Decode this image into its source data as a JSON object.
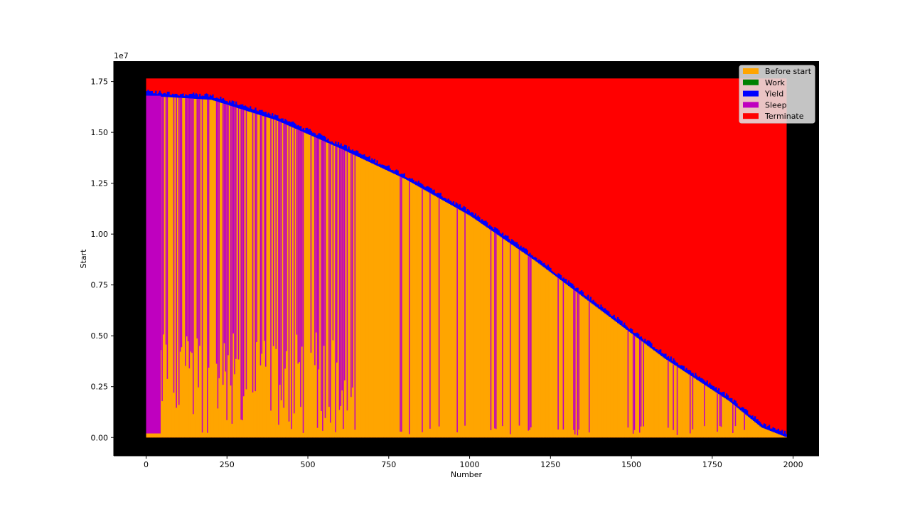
{
  "chart_data": {
    "type": "bar",
    "subtype": "stacked-horizontal-bars-per-thread-timeline",
    "xlabel": "Number",
    "ylabel": "Start",
    "y_offset_label": "1e7",
    "xlim": [
      -100,
      2080
    ],
    "ylim": [
      -0.09,
      1.85
    ],
    "y_scale_note": "values shown in units of 1e7",
    "x_ticks": [
      0,
      250,
      500,
      750,
      1000,
      1250,
      1500,
      1750,
      2000
    ],
    "x_tick_labels": [
      "0",
      "250",
      "500",
      "750",
      "1000",
      "1250",
      "1500",
      "1750",
      "2000"
    ],
    "y_ticks": [
      0.0,
      0.25,
      0.5,
      0.75,
      1.0,
      1.25,
      1.5,
      1.75
    ],
    "y_tick_labels": [
      "0.00",
      "0.25",
      "0.50",
      "0.75",
      "1.00",
      "1.25",
      "1.50",
      "1.75"
    ],
    "background": "#000000",
    "legend_position": "upper right",
    "series": [
      {
        "name": "Before start",
        "color": "#ffa500"
      },
      {
        "name": "Work",
        "color": "#008000"
      },
      {
        "name": "Yield",
        "color": "#0000ff"
      },
      {
        "name": "Sleep",
        "color": "#bf00bf"
      },
      {
        "name": "Terminate",
        "color": "#ff0000"
      }
    ],
    "n_bars": 1980,
    "terminate_top": 1.765,
    "sleep_top": 1.68,
    "boundary_profile": {
      "x": [
        0,
        200,
        400,
        600,
        800,
        1000,
        1200,
        1400,
        1600,
        1800,
        1900,
        1980
      ],
      "y": [
        1.68,
        1.66,
        1.56,
        1.42,
        1.27,
        1.09,
        0.87,
        0.63,
        0.39,
        0.18,
        0.05,
        0.0
      ]
    },
    "sleep_heavy_region_until": 640,
    "yield_band_width": 0.02
  }
}
